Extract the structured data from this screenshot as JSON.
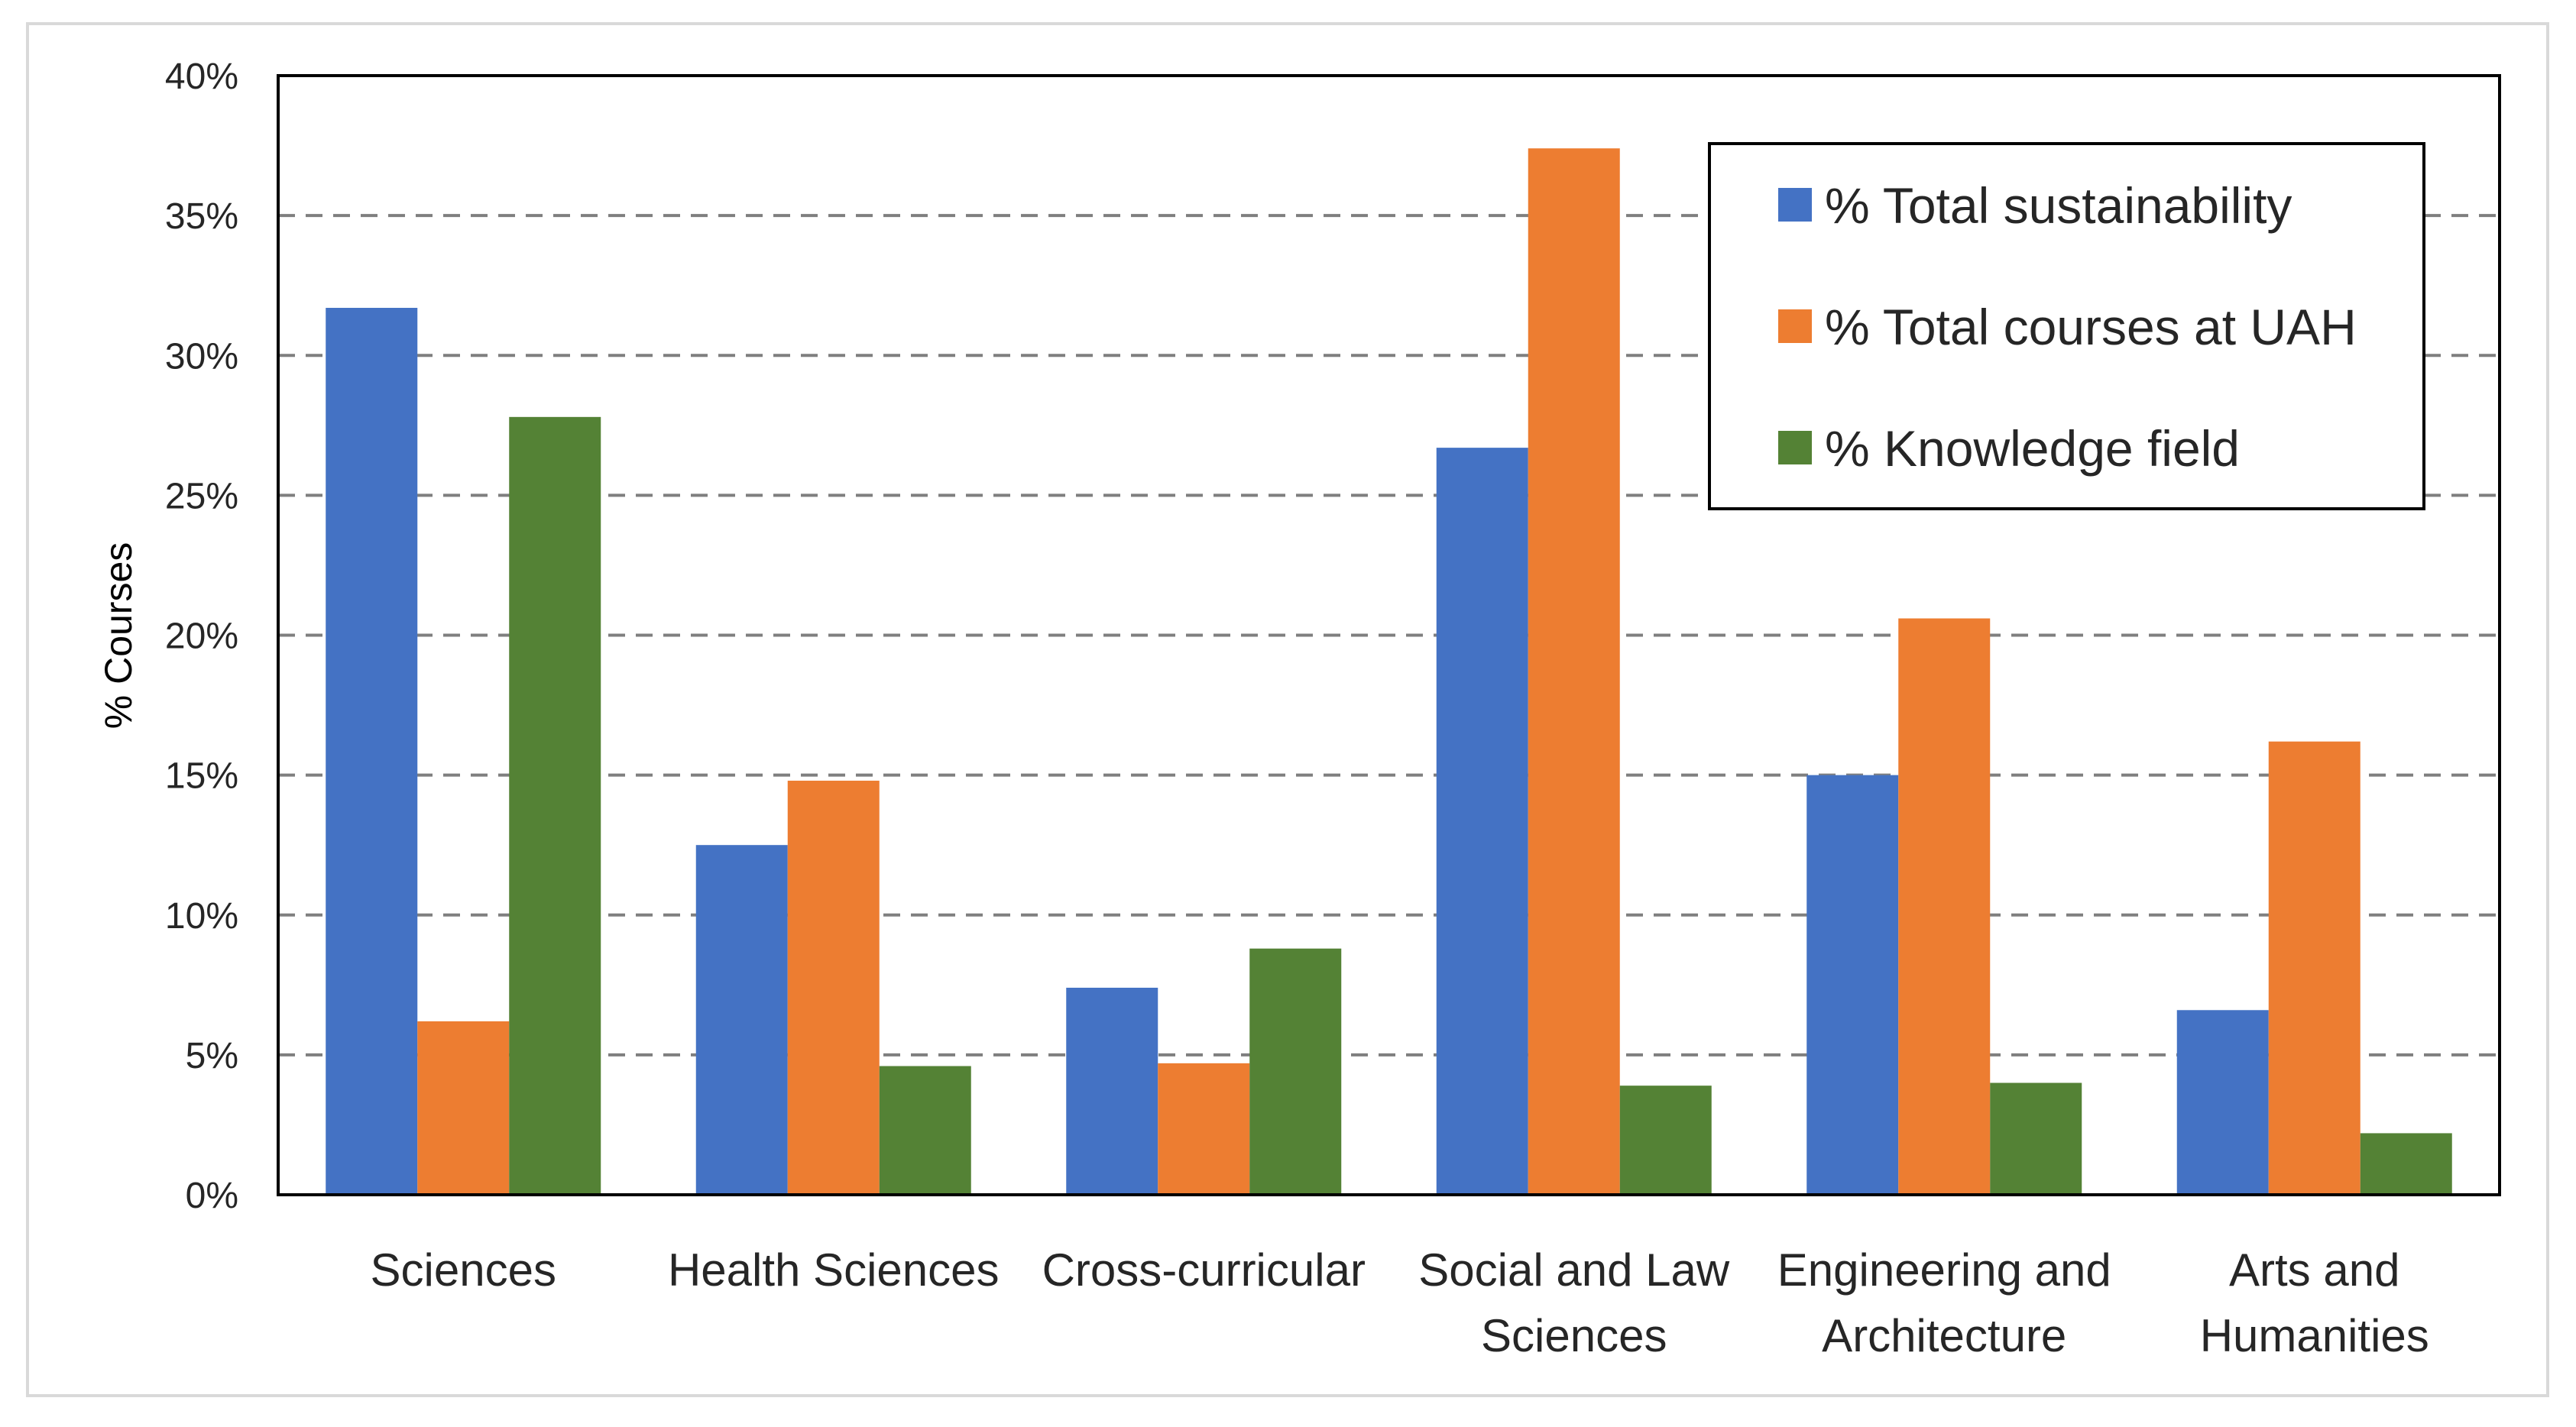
{
  "chart_data": {
    "type": "bar",
    "title": "",
    "xlabel": "",
    "ylabel": "% Courses",
    "ylim": [
      0,
      40
    ],
    "yticks": [
      "0%",
      "5%",
      "10%",
      "15%",
      "20%",
      "25%",
      "30%",
      "35%",
      "40%"
    ],
    "grid": true,
    "legend_position": "top-right",
    "categories": [
      [
        "Sciences"
      ],
      [
        "Health Sciences"
      ],
      [
        "Cross-curricular"
      ],
      [
        "Social and Law",
        "Sciences"
      ],
      [
        "Engineering and",
        "Architecture"
      ],
      [
        "Arts and",
        "Humanities"
      ]
    ],
    "series": [
      {
        "name": "% Total sustainability",
        "color": "#4472C4",
        "values": [
          31.7,
          12.5,
          7.4,
          26.7,
          15.0,
          6.6
        ]
      },
      {
        "name": "% Total courses at UAH",
        "color": "#ED7D31",
        "values": [
          6.2,
          14.8,
          4.7,
          37.4,
          20.6,
          16.2
        ]
      },
      {
        "name": "% Knowledge field",
        "color": "#548235",
        "values": [
          27.8,
          4.6,
          8.8,
          3.9,
          4.0,
          2.2
        ]
      }
    ]
  }
}
